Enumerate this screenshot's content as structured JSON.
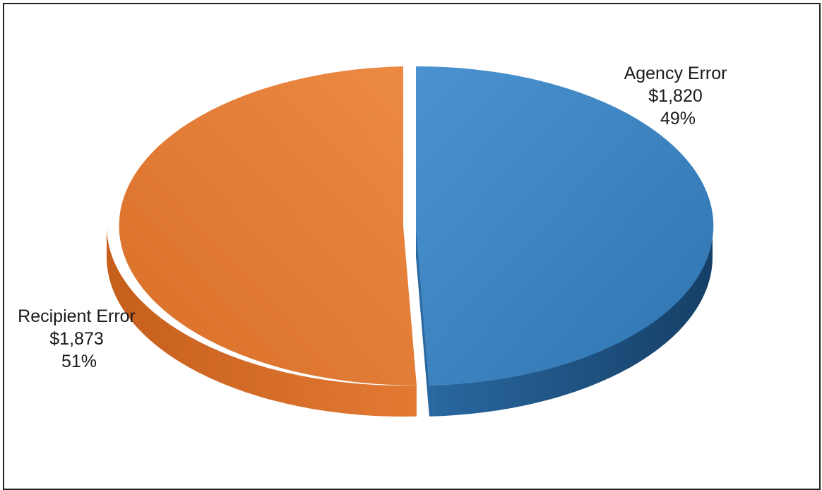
{
  "chart_data": {
    "type": "pie",
    "title": "",
    "style": "3d-exploded",
    "slices": [
      {
        "name": "Agency Error",
        "value": 1820,
        "value_label": "$1,820",
        "percent_label": "49%",
        "color": "#3a82c0",
        "side_color": "#1f5a8e"
      },
      {
        "name": "Recipient Error",
        "value": 1873,
        "value_label": "$1,873",
        "percent_label": "51%",
        "color": "#e07830",
        "side_color": "#c4621e"
      }
    ],
    "legend": "none"
  }
}
